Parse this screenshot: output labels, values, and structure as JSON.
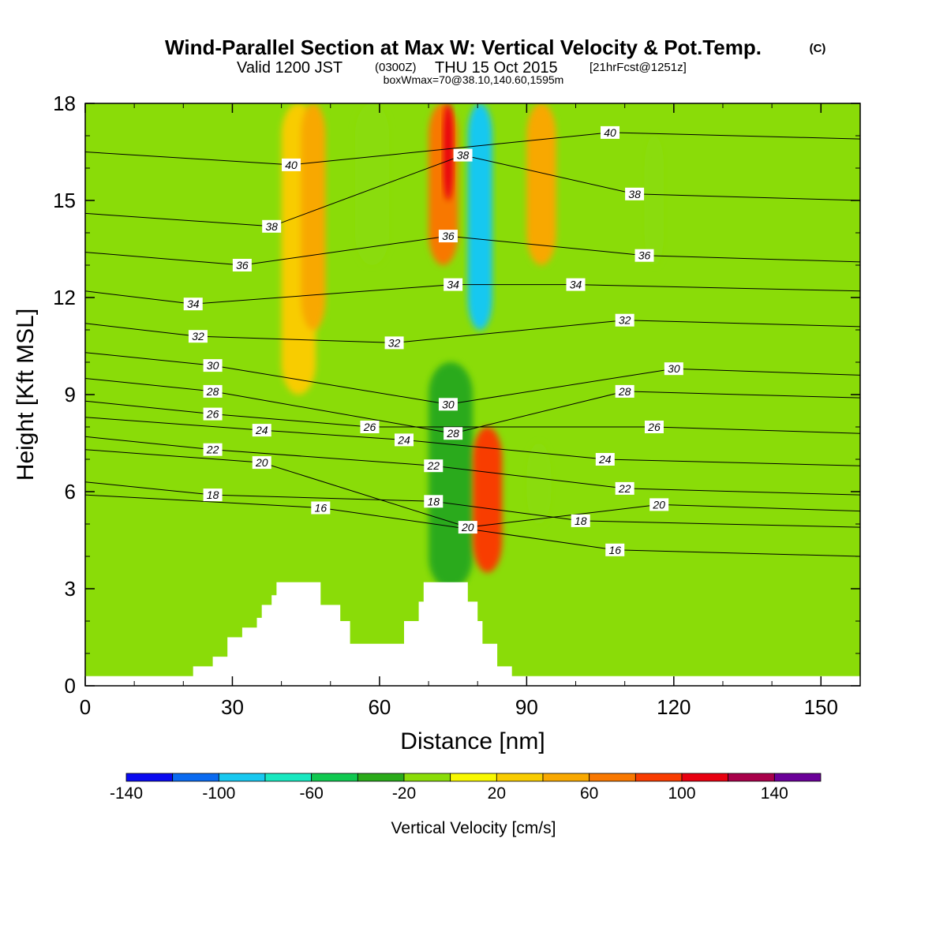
{
  "header": {
    "title": "Wind-Parallel Section at Max W: Vertical Velocity & Pot.Temp.",
    "title_mark": "(C)",
    "valid_prefix": "Valid 1200 JST",
    "valid_utc": "(0300Z)",
    "valid_date": "THU 15 Oct 2015",
    "forecast": "[21hrFcst@1251z]",
    "box_info": "boxWmax=70@38.10,140.60,1595m"
  },
  "chart_data": {
    "type": "heatmap",
    "title": "Wind-Parallel Section at Max W: Vertical Velocity & Pot.Temp.",
    "xlabel": "Distance [nm]",
    "ylabel": "Height [Kft MSL]",
    "xlim": [
      0,
      158
    ],
    "ylim": [
      0,
      18
    ],
    "x_ticks": [
      0,
      30,
      60,
      90,
      120,
      150
    ],
    "x_tick_labels": [
      "0",
      "30",
      "60",
      "90",
      "120",
      "150"
    ],
    "y_ticks": [
      0,
      3,
      6,
      9,
      12,
      15,
      18
    ],
    "y_tick_labels": [
      "0",
      "3",
      "6",
      "9",
      "12",
      "15",
      "18"
    ],
    "colorbar": {
      "label": "Vertical Velocity [cm/s]",
      "levels": [
        -140,
        -120,
        -100,
        -80,
        -60,
        -40,
        -20,
        0,
        20,
        40,
        60,
        80,
        100,
        120,
        140,
        160
      ],
      "tick_values": [
        -140,
        -100,
        -60,
        -20,
        20,
        60,
        100,
        140
      ],
      "tick_labels": [
        "-140",
        "-100",
        "-60",
        "-20",
        "20",
        "60",
        "100",
        "140"
      ],
      "colors": [
        "#0a0af0",
        "#0a6af0",
        "#18c8f0",
        "#18e8c0",
        "#10c850",
        "#2aaa1a",
        "#8adc08",
        "#f8f800",
        "#f8cc00",
        "#f8a800",
        "#f87800",
        "#f83c00",
        "#e80010",
        "#a8004a",
        "#6a0098"
      ]
    },
    "velocity_regions": [
      {
        "value": 30,
        "x": [
          40,
          47
        ],
        "y": [
          9,
          18
        ]
      },
      {
        "value": 50,
        "x": [
          44,
          49
        ],
        "y": [
          11,
          18
        ]
      },
      {
        "value": -20,
        "x": [
          55,
          62
        ],
        "y": [
          13,
          18
        ]
      },
      {
        "value": 60,
        "x": [
          70,
          76
        ],
        "y": [
          13,
          18
        ]
      },
      {
        "value": 100,
        "x": [
          73,
          75
        ],
        "y": [
          15,
          18
        ]
      },
      {
        "value": -100,
        "x": [
          78,
          83
        ],
        "y": [
          11,
          18
        ]
      },
      {
        "value": -30,
        "x": [
          70,
          79
        ],
        "y": [
          3,
          10
        ]
      },
      {
        "value": 80,
        "x": [
          79,
          85
        ],
        "y": [
          3.5,
          8
        ]
      },
      {
        "value": 50,
        "x": [
          90,
          96
        ],
        "y": [
          13,
          18
        ]
      },
      {
        "value": -20,
        "x": [
          90,
          95
        ],
        "y": [
          5,
          7.5
        ]
      },
      {
        "value": -20,
        "x": [
          114,
          118
        ],
        "y": [
          13,
          17
        ]
      }
    ],
    "theta_contour_labels": [
      {
        "text": "40",
        "x": 42,
        "y": 16.1
      },
      {
        "text": "40",
        "x": 107,
        "y": 17.1
      },
      {
        "text": "38",
        "x": 77,
        "y": 16.4
      },
      {
        "text": "38",
        "x": 38,
        "y": 14.2
      },
      {
        "text": "38",
        "x": 112,
        "y": 15.2
      },
      {
        "text": "36",
        "x": 74,
        "y": 13.9
      },
      {
        "text": "36",
        "x": 32,
        "y": 13.0
      },
      {
        "text": "36",
        "x": 114,
        "y": 13.3
      },
      {
        "text": "34",
        "x": 75,
        "y": 12.4
      },
      {
        "text": "34",
        "x": 22,
        "y": 11.8
      },
      {
        "text": "34",
        "x": 100,
        "y": 12.4
      },
      {
        "text": "32",
        "x": 23,
        "y": 10.8
      },
      {
        "text": "32",
        "x": 63,
        "y": 10.6
      },
      {
        "text": "32",
        "x": 110,
        "y": 11.3
      },
      {
        "text": "30",
        "x": 26,
        "y": 9.9
      },
      {
        "text": "30",
        "x": 74,
        "y": 8.7
      },
      {
        "text": "30",
        "x": 120,
        "y": 9.8
      },
      {
        "text": "28",
        "x": 26,
        "y": 9.1
      },
      {
        "text": "28",
        "x": 75,
        "y": 7.8
      },
      {
        "text": "28",
        "x": 110,
        "y": 9.1
      },
      {
        "text": "26",
        "x": 26,
        "y": 8.4
      },
      {
        "text": "26",
        "x": 58,
        "y": 8.0
      },
      {
        "text": "26",
        "x": 116,
        "y": 8.0
      },
      {
        "text": "24",
        "x": 36,
        "y": 7.9
      },
      {
        "text": "24",
        "x": 65,
        "y": 7.6
      },
      {
        "text": "24",
        "x": 106,
        "y": 7.0
      },
      {
        "text": "22",
        "x": 26,
        "y": 7.3
      },
      {
        "text": "22",
        "x": 71,
        "y": 6.8
      },
      {
        "text": "22",
        "x": 110,
        "y": 6.1
      },
      {
        "text": "20",
        "x": 36,
        "y": 6.9
      },
      {
        "text": "20",
        "x": 78,
        "y": 4.9
      },
      {
        "text": "20",
        "x": 117,
        "y": 5.6
      },
      {
        "text": "18",
        "x": 26,
        "y": 5.9
      },
      {
        "text": "18",
        "x": 71,
        "y": 5.7
      },
      {
        "text": "18",
        "x": 101,
        "y": 5.1
      },
      {
        "text": "16",
        "x": 48,
        "y": 5.5
      },
      {
        "text": "16",
        "x": 108,
        "y": 4.2
      }
    ],
    "terrain_steps": [
      [
        0,
        0.3
      ],
      [
        22,
        0.3
      ],
      [
        22,
        0.6
      ],
      [
        26,
        0.6
      ],
      [
        26,
        0.9
      ],
      [
        29,
        0.9
      ],
      [
        29,
        1.5
      ],
      [
        32,
        1.5
      ],
      [
        32,
        1.8
      ],
      [
        35,
        1.8
      ],
      [
        35,
        2.1
      ],
      [
        36,
        2.1
      ],
      [
        36,
        2.5
      ],
      [
        38,
        2.5
      ],
      [
        38,
        2.8
      ],
      [
        39,
        2.8
      ],
      [
        39,
        3.2
      ],
      [
        48,
        3.2
      ],
      [
        48,
        2.5
      ],
      [
        52,
        2.5
      ],
      [
        52,
        2.0
      ],
      [
        54,
        2.0
      ],
      [
        54,
        1.3
      ],
      [
        65,
        1.3
      ],
      [
        65,
        2.0
      ],
      [
        68,
        2.0
      ],
      [
        68,
        2.6
      ],
      [
        69,
        2.6
      ],
      [
        69,
        3.2
      ],
      [
        78,
        3.2
      ],
      [
        78,
        2.6
      ],
      [
        80,
        2.6
      ],
      [
        80,
        2.0
      ],
      [
        81,
        2.0
      ],
      [
        81,
        1.3
      ],
      [
        84,
        1.3
      ],
      [
        84,
        0.6
      ],
      [
        87,
        0.6
      ],
      [
        87,
        0.3
      ],
      [
        158,
        0.3
      ]
    ]
  }
}
